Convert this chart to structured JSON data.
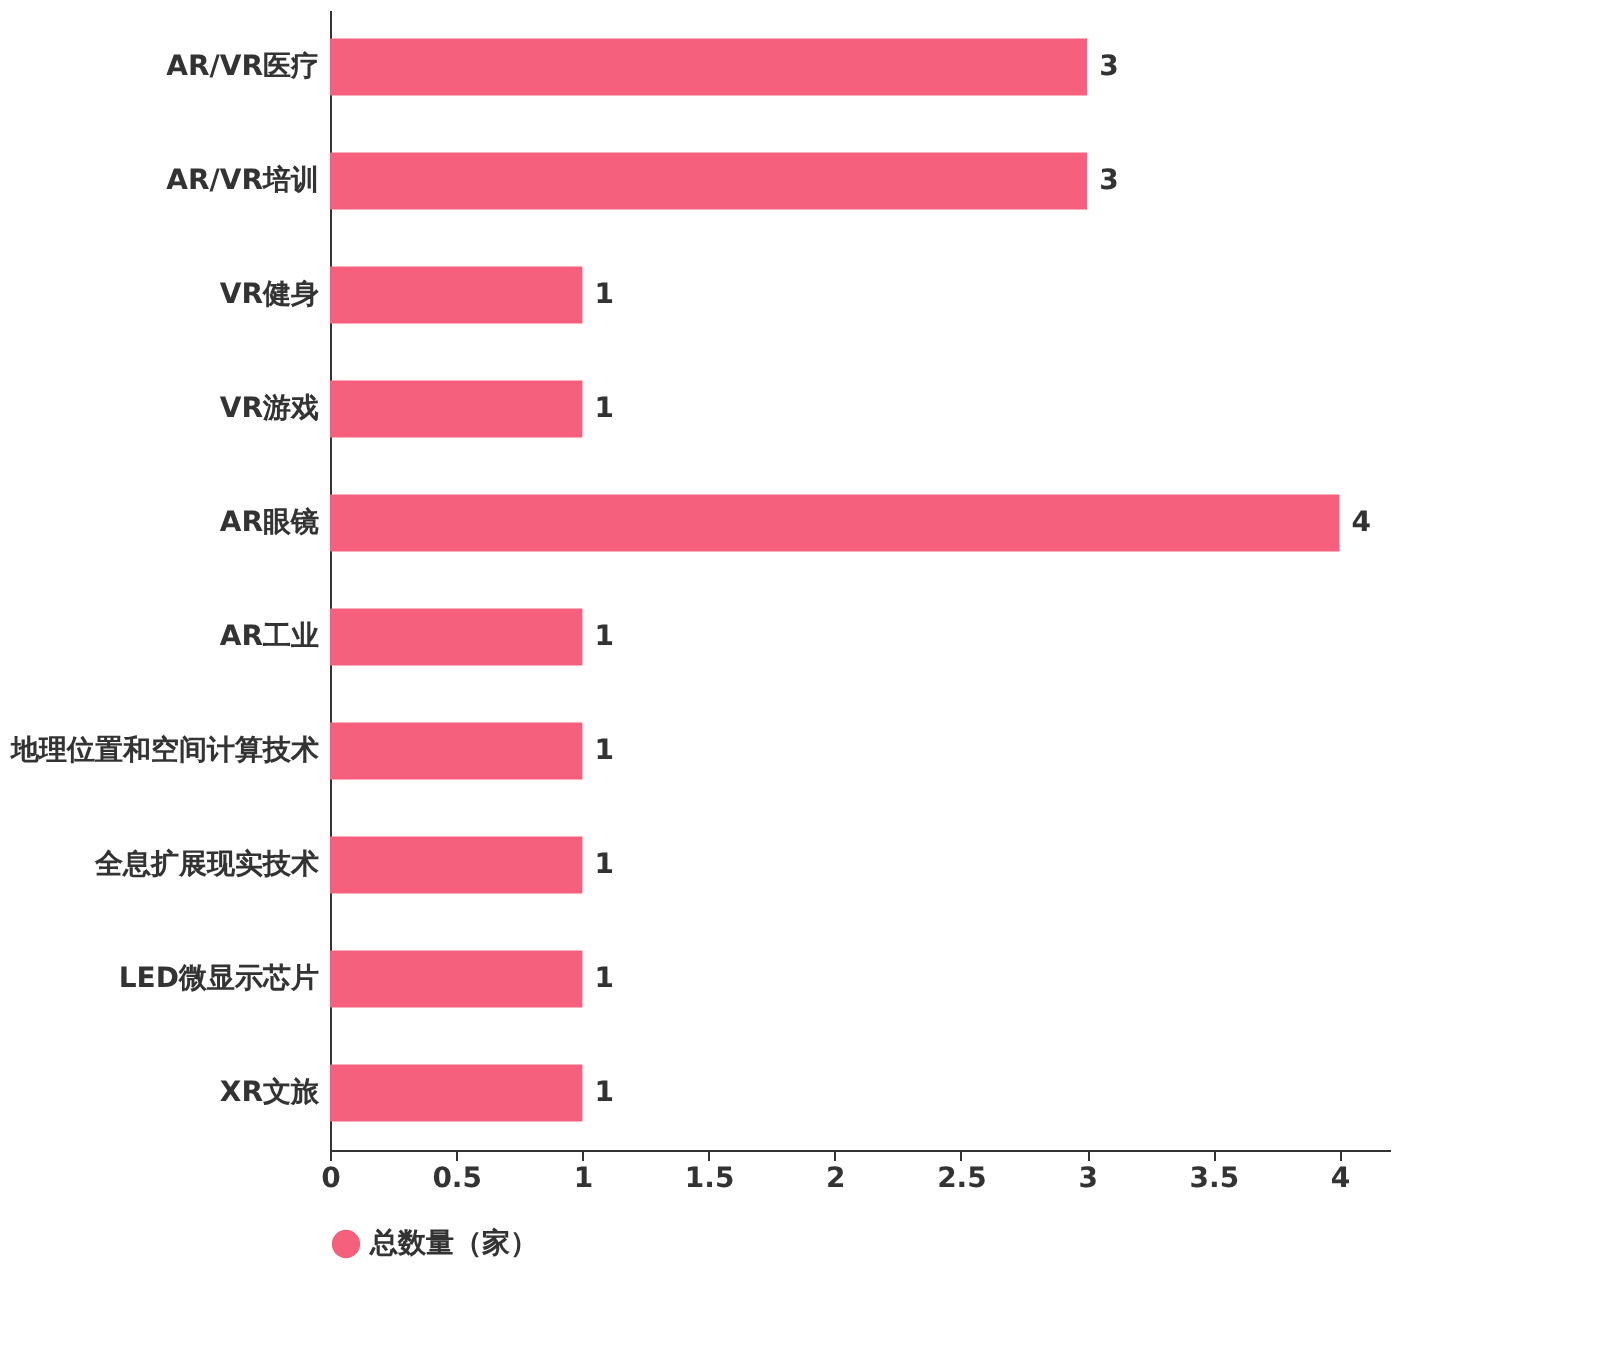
{
  "chart_data": {
    "type": "bar",
    "orientation": "horizontal",
    "categories": [
      "AR/VR医疗",
      "AR/VR培训",
      "VR健身",
      "VR游戏",
      "AR眼镜",
      "AR工业",
      "地理位置和空间计算技术",
      "全息扩展现实技术",
      "LED微显示芯片",
      "XR文旅"
    ],
    "series": [
      {
        "name": "总数量（家）",
        "color": "#f5607c",
        "values": [
          3,
          3,
          1,
          1,
          4,
          1,
          1,
          1,
          1,
          1
        ]
      }
    ],
    "xlim": [
      0,
      4.2
    ],
    "xticks": [
      0,
      0.5,
      1,
      1.5,
      2,
      2.5,
      3,
      3.5,
      4
    ],
    "data_labels": true,
    "grid": false,
    "legend": "bottom"
  }
}
